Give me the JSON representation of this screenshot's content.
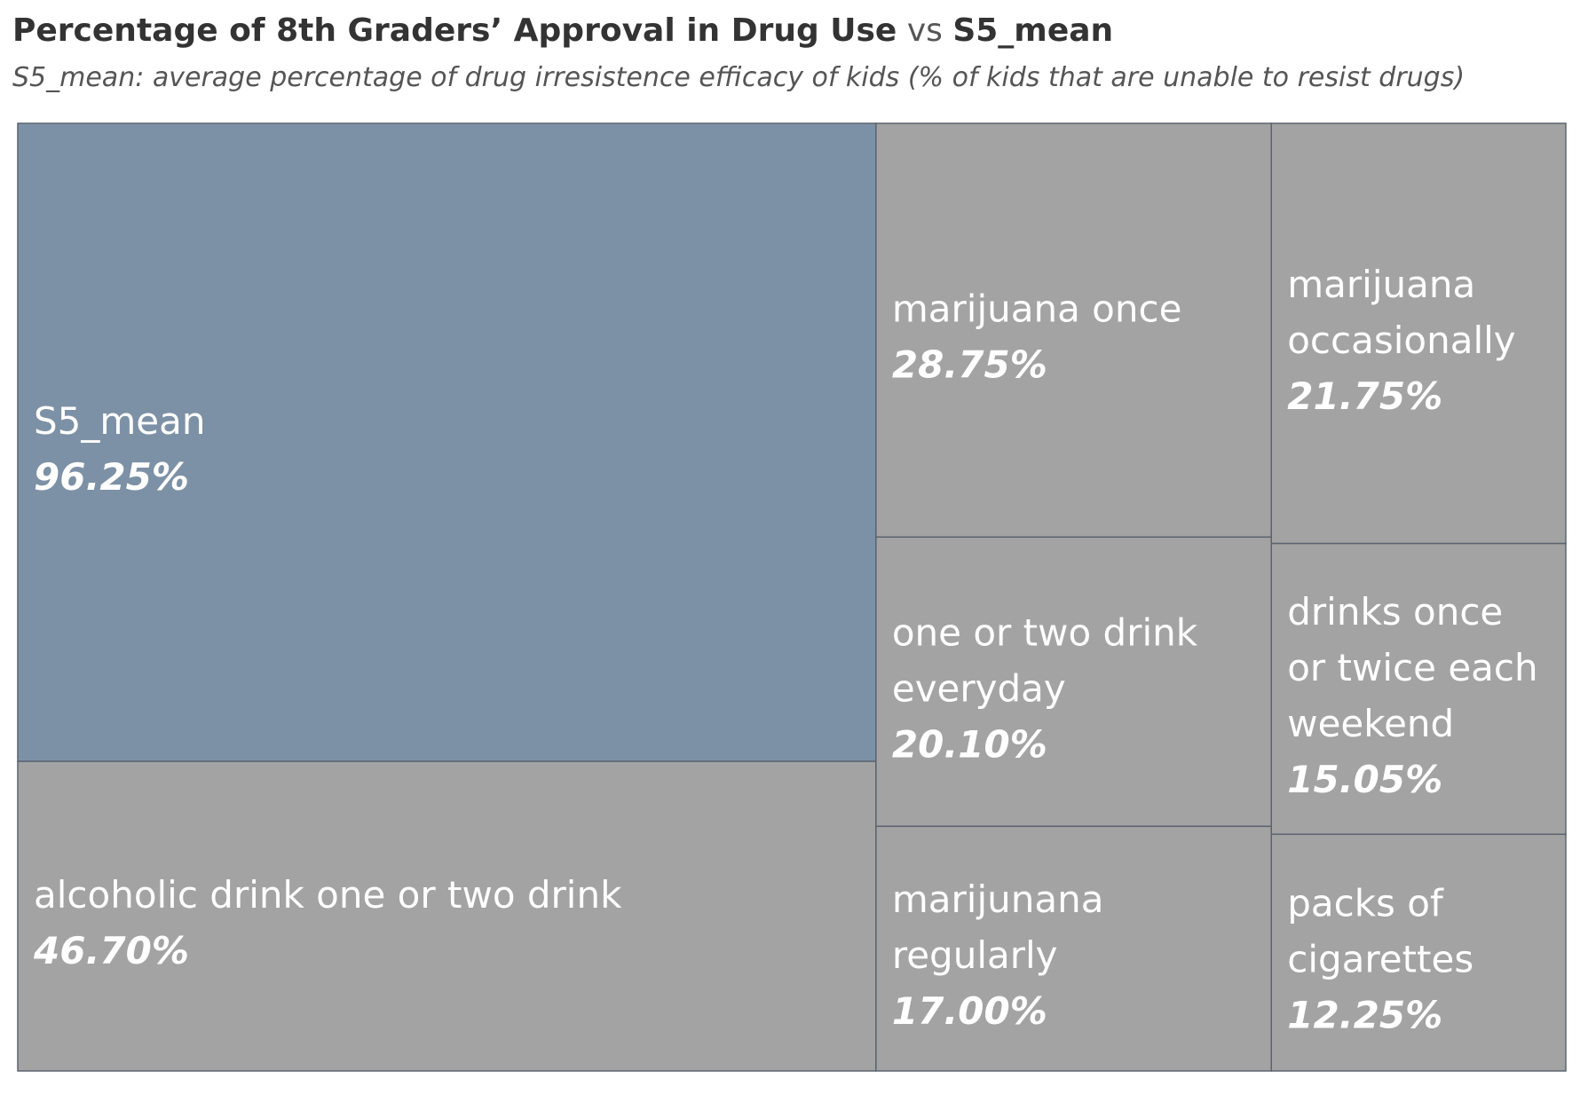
{
  "title": {
    "part1": "Percentage of 8th Graders’ Approval in Drug Use",
    "vs": "vs",
    "part2": "S5_mean"
  },
  "subtitle": "S5_mean: average percentage of drug irresistence efficacy of kids (% of kids that are unable to resist drugs)",
  "colors": {
    "highlight": "#7d91a6",
    "default": "#a3a3a3",
    "border": "#5b6470"
  },
  "chart_data": {
    "type": "treemap",
    "items": [
      {
        "label": "S5_mean",
        "value": 96.25,
        "display": "96.25%",
        "highlight": true
      },
      {
        "label": "alcoholic drink one or two drink",
        "value": 46.7,
        "display": "46.70%"
      },
      {
        "label": "marijuana once",
        "value": 28.75,
        "display": "28.75%"
      },
      {
        "label": "marijuana occasionally",
        "value": 21.75,
        "display": "21.75%"
      },
      {
        "label": "one or two drink everyday",
        "value": 20.1,
        "display": "20.10%"
      },
      {
        "label": "marijunana regularly",
        "value": 17.0,
        "display": "17.00%"
      },
      {
        "label": "drinks once or twice each weekend",
        "value": 15.05,
        "display": "15.05%"
      },
      {
        "label": "packs of cigarettes",
        "value": 12.25,
        "display": "12.25%"
      }
    ]
  }
}
